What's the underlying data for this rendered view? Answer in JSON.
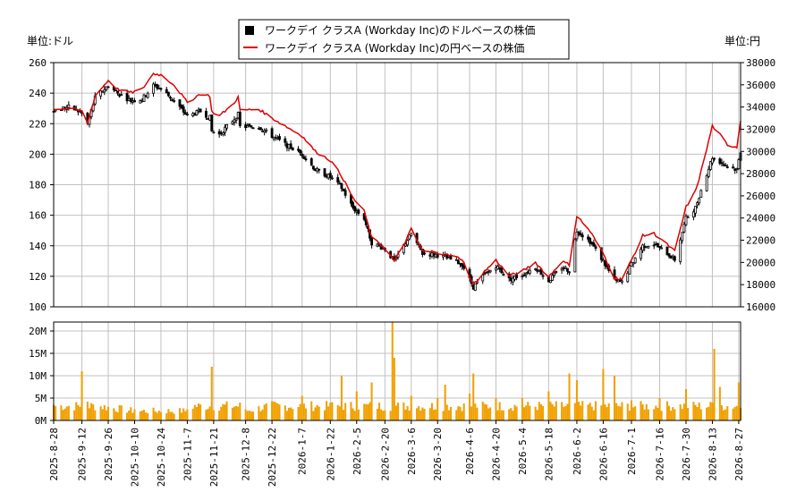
{
  "chart_data": {
    "type": "candlestick+line+bar",
    "legend": [
      {
        "label": "ワークデイ クラスA (Workday Inc)のドルベースの株価",
        "color": "#000000",
        "marker": "square"
      },
      {
        "label": "ワークデイ クラスA (Workday Inc)の円ベースの株価",
        "color": "#dd0000",
        "marker": "line"
      }
    ],
    "legend_position": "top-center",
    "left_unit_label": "単位:ドル",
    "right_unit_label": "単位:円",
    "price_axis": {
      "ylim": [
        100,
        260
      ],
      "ticks": [
        "260",
        "240",
        "220",
        "200",
        "180",
        "160",
        "140",
        "120",
        "100"
      ]
    },
    "yen_axis": {
      "ylim": [
        16000,
        38000
      ],
      "ticks": [
        "38000",
        "36000",
        "34000",
        "32000",
        "30000",
        "28000",
        "26000",
        "24000",
        "22000",
        "20000",
        "18000",
        "16000"
      ]
    },
    "volume_axis": {
      "ylim": [
        0,
        22000000
      ],
      "ticks": [
        "20M",
        "15M",
        "10M",
        "5M",
        "0M"
      ]
    },
    "x_start_date": "2025-08-28",
    "x_end_date": "2026-08-28",
    "x_tick_labels": [
      "2025-8-28",
      "2025-9-12",
      "2025-9-26",
      "2025-10-10",
      "2025-10-24",
      "2025-11-7",
      "2025-11-21",
      "2025-12-8",
      "2025-12-22",
      "2026-1-7",
      "2026-1-22",
      "2026-2-5",
      "2026-2-20",
      "2026-3-6",
      "2026-3-20",
      "2026-4-6",
      "2026-4-20",
      "2026-5-4",
      "2026-5-18",
      "2026-6-2",
      "2026-6-16",
      "2026-7-1",
      "2026-7-16",
      "2026-7-30",
      "2026-8-13",
      "2026-8-27"
    ],
    "usd_close_keypoints": [
      [
        "2025-08-28",
        229
      ],
      [
        "2025-09-05",
        231
      ],
      [
        "2025-09-12",
        227
      ],
      [
        "2025-09-15",
        220
      ],
      [
        "2025-09-19",
        237
      ],
      [
        "2025-09-26",
        245
      ],
      [
        "2025-10-01",
        240
      ],
      [
        "2025-10-08",
        235
      ],
      [
        "2025-10-14",
        236
      ],
      [
        "2025-10-20",
        245
      ],
      [
        "2025-10-24",
        243
      ],
      [
        "2025-10-31",
        235
      ],
      [
        "2025-11-07",
        225
      ],
      [
        "2025-11-14",
        228
      ],
      [
        "2025-11-19",
        224
      ],
      [
        "2025-11-20",
        215
      ],
      [
        "2025-11-24",
        213
      ],
      [
        "2025-12-01",
        222
      ],
      [
        "2025-12-04",
        226
      ],
      [
        "2025-12-05",
        218
      ],
      [
        "2025-12-15",
        218
      ],
      [
        "2025-12-22",
        212
      ],
      [
        "2025-12-31",
        205
      ],
      [
        "2026-01-07",
        200
      ],
      [
        "2026-01-14",
        190
      ],
      [
        "2026-01-22",
        185
      ],
      [
        "2026-01-28",
        178
      ],
      [
        "2026-02-03",
        165
      ],
      [
        "2026-02-09",
        158
      ],
      [
        "2026-02-13",
        142
      ],
      [
        "2026-02-20",
        138
      ],
      [
        "2026-02-25",
        130
      ],
      [
        "2026-03-02",
        140
      ],
      [
        "2026-03-06",
        148
      ],
      [
        "2026-03-12",
        135
      ],
      [
        "2026-03-20",
        134
      ],
      [
        "2026-03-27",
        131
      ],
      [
        "2026-04-02",
        128
      ],
      [
        "2026-04-08",
        113
      ],
      [
        "2026-04-14",
        121
      ],
      [
        "2026-04-20",
        127
      ],
      [
        "2026-04-27",
        118
      ],
      [
        "2026-05-04",
        121
      ],
      [
        "2026-05-11",
        126
      ],
      [
        "2026-05-18",
        117
      ],
      [
        "2026-05-25",
        126
      ],
      [
        "2026-05-29",
        124
      ],
      [
        "2026-06-02",
        150
      ],
      [
        "2026-06-09",
        143
      ],
      [
        "2026-06-16",
        130
      ],
      [
        "2026-06-22",
        117
      ],
      [
        "2026-06-26",
        116
      ],
      [
        "2026-07-01",
        128
      ],
      [
        "2026-07-07",
        140
      ],
      [
        "2026-07-13",
        141
      ],
      [
        "2026-07-20",
        135
      ],
      [
        "2026-07-24",
        131
      ],
      [
        "2026-07-30",
        158
      ],
      [
        "2026-08-04",
        165
      ],
      [
        "2026-08-08",
        180
      ],
      [
        "2026-08-13",
        198
      ],
      [
        "2026-08-17",
        195
      ],
      [
        "2026-08-21",
        192
      ],
      [
        "2026-08-26",
        190
      ],
      [
        "2026-08-28",
        202
      ]
    ],
    "jpy_close_keypoints": [
      [
        "2025-08-28",
        33800
      ],
      [
        "2025-09-05",
        33900
      ],
      [
        "2025-09-12",
        33600
      ],
      [
        "2025-09-15",
        32600
      ],
      [
        "2025-09-19",
        35000
      ],
      [
        "2025-09-26",
        36400
      ],
      [
        "2025-10-01",
        35600
      ],
      [
        "2025-10-08",
        35300
      ],
      [
        "2025-10-14",
        35600
      ],
      [
        "2025-10-20",
        37000
      ],
      [
        "2025-10-24",
        36900
      ],
      [
        "2025-10-31",
        36000
      ],
      [
        "2025-11-07",
        34400
      ],
      [
        "2025-11-14",
        35200
      ],
      [
        "2025-11-19",
        35000
      ],
      [
        "2025-11-20",
        33600
      ],
      [
        "2025-11-24",
        33200
      ],
      [
        "2025-12-01",
        34200
      ],
      [
        "2025-12-04",
        34900
      ],
      [
        "2025-12-05",
        33700
      ],
      [
        "2025-12-15",
        33800
      ],
      [
        "2025-12-22",
        33000
      ],
      [
        "2025-12-31",
        32100
      ],
      [
        "2026-01-07",
        31400
      ],
      [
        "2026-01-14",
        30000
      ],
      [
        "2026-01-22",
        29200
      ],
      [
        "2026-01-28",
        27800
      ],
      [
        "2026-02-03",
        25800
      ],
      [
        "2026-02-09",
        24600
      ],
      [
        "2026-02-13",
        22200
      ],
      [
        "2026-02-20",
        21300
      ],
      [
        "2026-02-25",
        20100
      ],
      [
        "2026-03-02",
        21600
      ],
      [
        "2026-03-06",
        23000
      ],
      [
        "2026-03-12",
        21000
      ],
      [
        "2026-03-20",
        20900
      ],
      [
        "2026-03-27",
        20600
      ],
      [
        "2026-04-02",
        20300
      ],
      [
        "2026-04-08",
        18000
      ],
      [
        "2026-04-14",
        19200
      ],
      [
        "2026-04-20",
        20200
      ],
      [
        "2026-04-27",
        18800
      ],
      [
        "2026-05-04",
        19200
      ],
      [
        "2026-05-11",
        20000
      ],
      [
        "2026-05-18",
        18700
      ],
      [
        "2026-05-25",
        20100
      ],
      [
        "2026-05-29",
        19800
      ],
      [
        "2026-06-02",
        24200
      ],
      [
        "2026-06-09",
        22800
      ],
      [
        "2026-06-16",
        20800
      ],
      [
        "2026-06-22",
        18600
      ],
      [
        "2026-06-26",
        18500
      ],
      [
        "2026-07-01",
        20200
      ],
      [
        "2026-07-07",
        22400
      ],
      [
        "2026-07-13",
        22600
      ],
      [
        "2026-07-20",
        21600
      ],
      [
        "2026-07-24",
        21000
      ],
      [
        "2026-07-30",
        25000
      ],
      [
        "2026-08-04",
        26400
      ],
      [
        "2026-08-08",
        28800
      ],
      [
        "2026-08-13",
        32300
      ],
      [
        "2026-08-17",
        31500
      ],
      [
        "2026-08-21",
        30600
      ],
      [
        "2026-08-26",
        30400
      ],
      [
        "2026-08-28",
        32800
      ]
    ],
    "volume_keypoints": [
      [
        "2025-08-28",
        3500000
      ],
      [
        "2025-09-12",
        11000000
      ],
      [
        "2025-09-15",
        4200000
      ],
      [
        "2025-10-10",
        2500000
      ],
      [
        "2025-11-07",
        2500000
      ],
      [
        "2025-11-20",
        12000000
      ],
      [
        "2025-12-08",
        2500000
      ],
      [
        "2026-01-07",
        5500000
      ],
      [
        "2026-01-22",
        4000000
      ],
      [
        "2026-01-28",
        10000000
      ],
      [
        "2026-02-05",
        6500000
      ],
      [
        "2026-02-13",
        8500000
      ],
      [
        "2026-02-24",
        22000000
      ],
      [
        "2026-02-25",
        14000000
      ],
      [
        "2026-03-06",
        5500000
      ],
      [
        "2026-03-20",
        5000000
      ],
      [
        "2026-03-24",
        8000000
      ],
      [
        "2026-04-06",
        6000000
      ],
      [
        "2026-04-08",
        10500000
      ],
      [
        "2026-04-20",
        5000000
      ],
      [
        "2026-05-04",
        5000000
      ],
      [
        "2026-05-18",
        6500000
      ],
      [
        "2026-05-29",
        10500000
      ],
      [
        "2026-06-02",
        9000000
      ],
      [
        "2026-06-16",
        11500000
      ],
      [
        "2026-06-22",
        10000000
      ],
      [
        "2026-07-01",
        4500000
      ],
      [
        "2026-07-16",
        5000000
      ],
      [
        "2026-07-30",
        7000000
      ],
      [
        "2026-08-13",
        4000000
      ],
      [
        "2026-08-14",
        16000000
      ],
      [
        "2026-08-17",
        7500000
      ],
      [
        "2026-08-27",
        8500000
      ]
    ],
    "colors": {
      "candle": "#000000",
      "yen_line": "#dd0000",
      "volume_bar": "#f0a000",
      "grid": "#c0c0c0",
      "frame": "#000000"
    },
    "grid": true
  }
}
